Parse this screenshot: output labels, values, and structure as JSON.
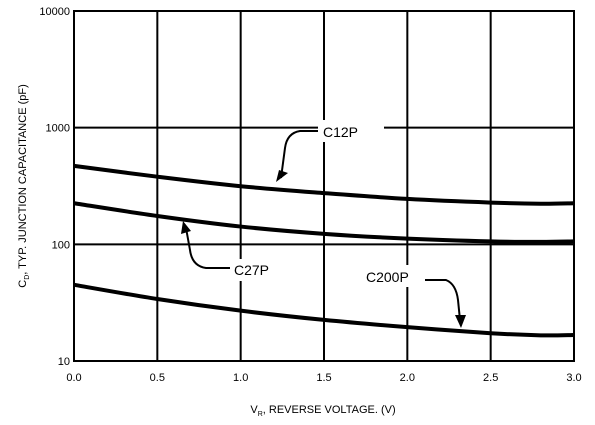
{
  "chart_data": {
    "type": "line",
    "xlabel": {
      "base": "V",
      "sub": "R",
      "rest": ", REVERSE VOLTAGE. (V)"
    },
    "ylabel": {
      "base": "C",
      "sub": "D",
      "rest": ", TYP. JUNCTION CAPACITANCE (pF)"
    },
    "xlim": [
      0,
      3
    ],
    "ylim": [
      10,
      10000
    ],
    "yscale": "log",
    "grid": true,
    "x_ticks": [
      0,
      0.5,
      1,
      1.5,
      2,
      2.5,
      3
    ],
    "x_tick_labels": [
      "0.0",
      "0.5",
      "1.0",
      "1.5",
      "2.0",
      "2.5",
      "3.0"
    ],
    "y_ticks": [
      10,
      100,
      1000,
      10000
    ],
    "y_tick_labels": [
      "10",
      "100",
      "1000",
      "10000"
    ],
    "series": [
      {
        "name": "C12P",
        "x": [
          0,
          0.5,
          1,
          1.5,
          2,
          2.5,
          2.8,
          3
        ],
        "y": [
          470,
          380,
          315,
          275,
          245,
          228,
          223,
          225
        ]
      },
      {
        "name": "C27P",
        "x": [
          0,
          0.5,
          1,
          1.5,
          2,
          2.5,
          2.8,
          3
        ],
        "y": [
          225,
          175,
          142,
          123,
          112,
          106,
          105,
          106
        ]
      },
      {
        "name": "C200P",
        "x": [
          0,
          0.5,
          1,
          1.5,
          2,
          2.5,
          2.8,
          3
        ],
        "y": [
          45,
          34,
          27,
          22.5,
          19.5,
          17.3,
          16.6,
          16.7
        ]
      }
    ]
  }
}
